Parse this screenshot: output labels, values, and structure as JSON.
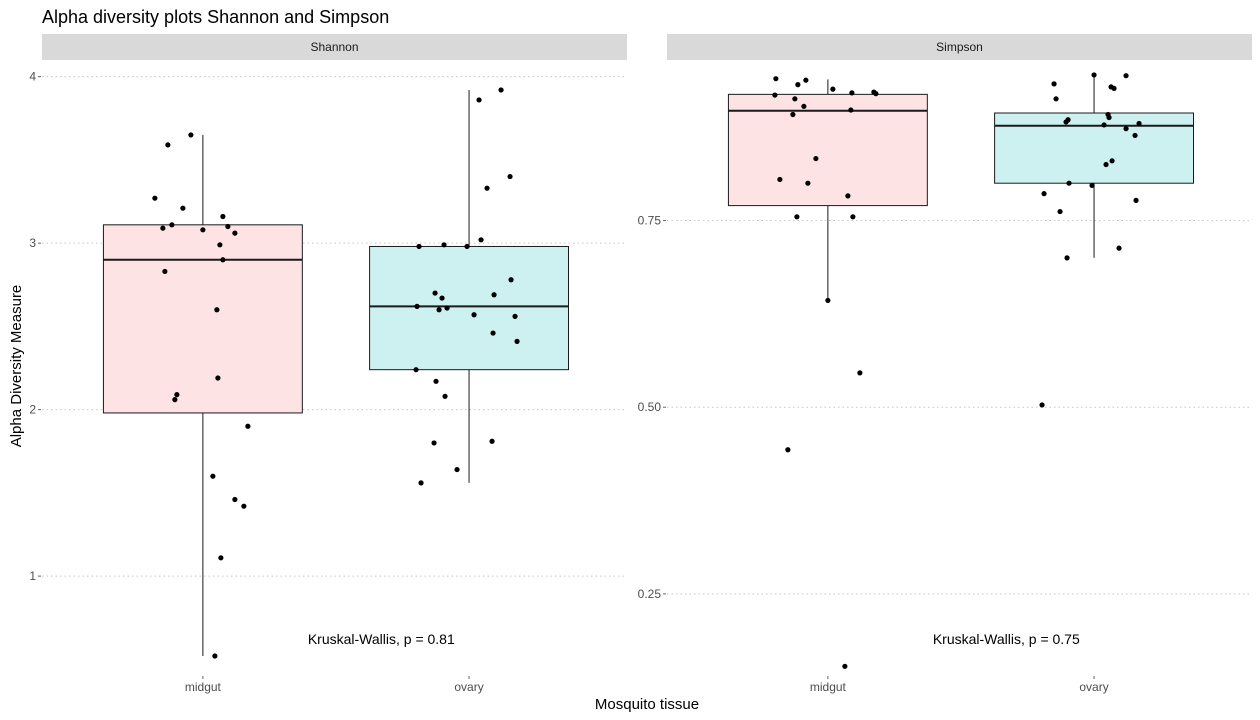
{
  "chart_data": {
    "type": "box",
    "title": "Alpha diversity plots Shannon and Simpson",
    "xlabel": "Mosquito tissue",
    "ylabel": "Alpha Diversity Measure",
    "legend": "none",
    "grid": "horizontal dotted major gridlines",
    "colors": {
      "midgut": "#fde3e3",
      "ovary": "#cdf0f0"
    },
    "categories": [
      "midgut",
      "ovary"
    ],
    "panels": [
      {
        "name": "Shannon",
        "ylim": [
          0.4,
          4.1
        ],
        "yticks": [
          1,
          2,
          3,
          4
        ],
        "ytick_labels": [
          "1",
          "2",
          "3",
          "4"
        ],
        "annotation": "Kruskal-Wallis, p = 0.81",
        "boxes": [
          {
            "category": "midgut",
            "lower_whisker": 0.52,
            "q1": 1.98,
            "median": 2.9,
            "q3": 3.11,
            "upper_whisker": 3.65
          },
          {
            "category": "ovary",
            "lower_whisker": 1.56,
            "q1": 2.24,
            "median": 2.62,
            "q3": 2.98,
            "upper_whisker": 3.92
          }
        ],
        "points": [
          {
            "category": "midgut",
            "values": [
              3.59,
              3.65,
              3.27,
              3.21,
              3.16,
              3.11,
              3.1,
              3.08,
              3.06,
              3.09,
              2.99,
              2.9,
              2.83,
              2.6,
              2.19,
              2.09,
              2.06,
              1.9,
              1.6,
              1.46,
              1.42,
              1.11,
              0.52
            ]
          },
          {
            "category": "ovary",
            "values": [
              3.86,
              3.92,
              3.4,
              3.33,
              3.02,
              2.99,
              2.98,
              2.98,
              2.78,
              2.7,
              2.69,
              2.67,
              2.62,
              2.61,
              2.6,
              2.57,
              2.56,
              2.46,
              2.41,
              2.24,
              2.17,
              2.08,
              1.81,
              1.8,
              1.64,
              1.56
            ]
          }
        ]
      },
      {
        "name": "Simpson",
        "ylim": [
          0.14,
          0.965
        ],
        "yticks": [
          0.25,
          0.5,
          0.75
        ],
        "ytick_labels": [
          "0.25",
          "0.50",
          "0.75"
        ],
        "annotation": "Kruskal-Wallis, p = 0.75",
        "boxes": [
          {
            "category": "midgut",
            "lower_whisker": 0.643,
            "q1": 0.77,
            "median": 0.897,
            "q3": 0.919,
            "upper_whisker": 0.939
          },
          {
            "category": "ovary",
            "lower_whisker": 0.7,
            "q1": 0.8,
            "median": 0.877,
            "q3": 0.894,
            "upper_whisker": 0.942
          }
        ],
        "points": [
          {
            "category": "midgut",
            "values": [
              0.94,
              0.938,
              0.932,
              0.926,
              0.922,
              0.921,
              0.92,
              0.918,
              0.913,
              0.903,
              0.898,
              0.892,
              0.833,
              0.805,
              0.8,
              0.783,
              0.755,
              0.755,
              0.643,
              0.546,
              0.443,
              0.153
            ]
          },
          {
            "category": "ovary",
            "values": [
              0.945,
              0.944,
              0.933,
              0.929,
              0.927,
              0.913,
              0.892,
              0.888,
              0.885,
              0.882,
              0.88,
              0.878,
              0.873,
              0.864,
              0.83,
              0.825,
              0.8,
              0.797,
              0.786,
              0.777,
              0.762,
              0.713,
              0.7,
              0.503
            ]
          }
        ]
      }
    ]
  }
}
